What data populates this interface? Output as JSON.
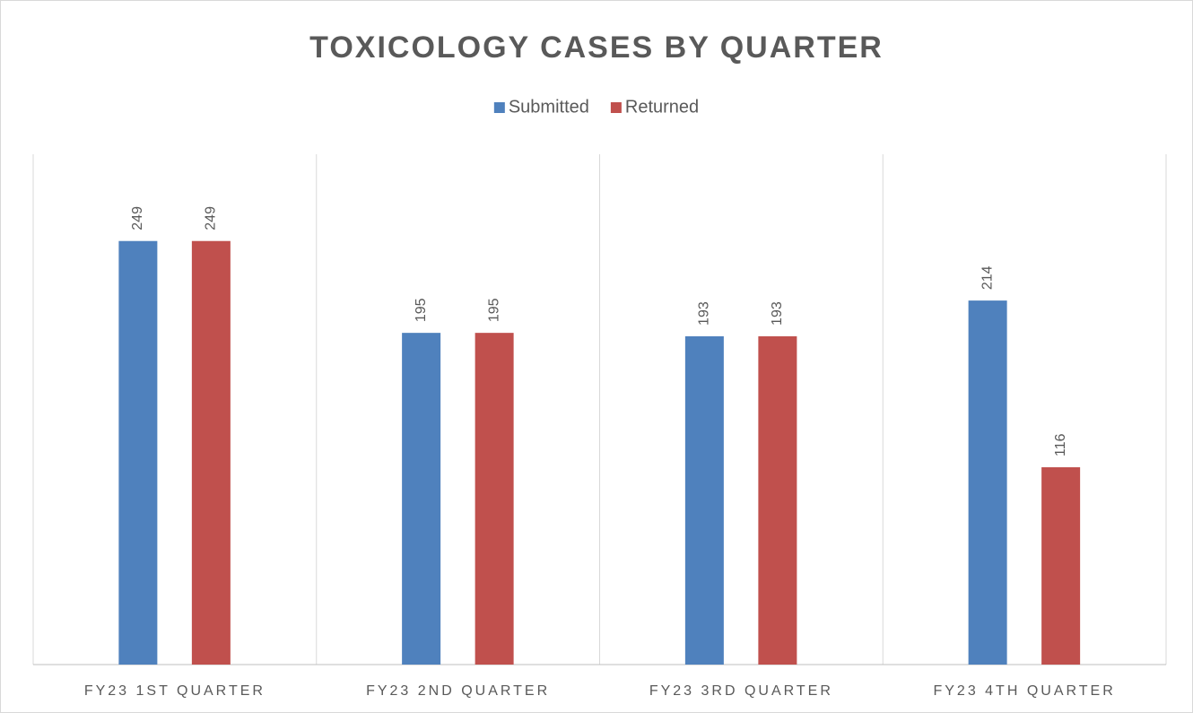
{
  "chart_data": {
    "type": "bar",
    "title": "TOXICOLOGY CASES BY QUARTER",
    "categories": [
      "FY23 1ST QUARTER",
      "FY23 2ND QUARTER",
      "FY23 3RD QUARTER",
      "FY23 4TH QUARTER"
    ],
    "series": [
      {
        "name": "Submitted",
        "color": "#4f81bd",
        "values": [
          249,
          195,
          193,
          214
        ]
      },
      {
        "name": "Returned",
        "color": "#c0504d",
        "values": [
          249,
          195,
          193,
          116
        ]
      }
    ],
    "ylim": [
      0,
      300
    ],
    "legend": "top"
  }
}
